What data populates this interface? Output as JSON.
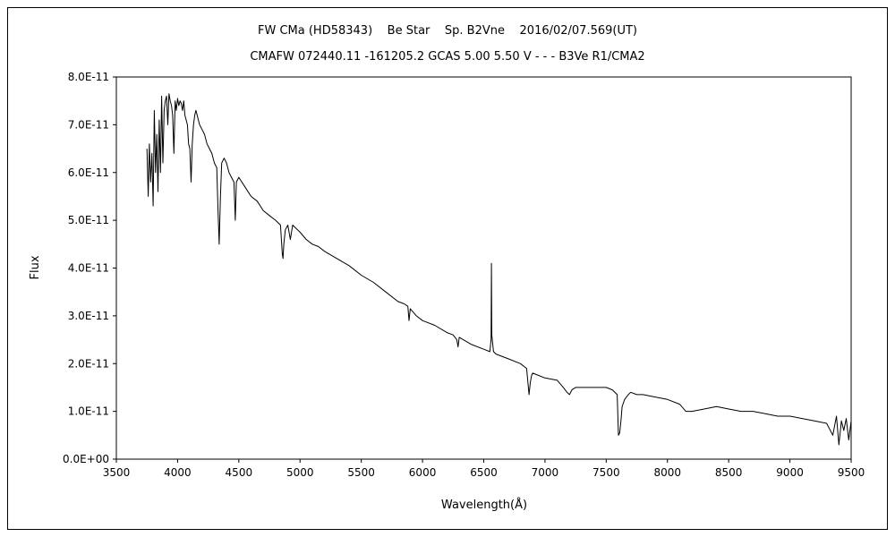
{
  "chart_data": {
    "type": "line",
    "title": "FW CMa (HD58343)    Be Star    Sp. B2Vne    2016/02/07.569(UT)",
    "subtitle": "CMAFW 072440.11 -161205.2 GCAS 5.00 5.50 V - - - B3Ve R1/CMA2",
    "xlabel": "Wavelength(Å)",
    "ylabel": "Flux",
    "xlim": [
      3500,
      9500
    ],
    "ylim": [
      0,
      8e-11
    ],
    "xticks": [
      "3500",
      "4000",
      "4500",
      "5000",
      "5500",
      "6000",
      "6500",
      "7000",
      "7500",
      "8000",
      "8500",
      "9000",
      "9500"
    ],
    "yticks": [
      "0.0E+00",
      "1.0E-11",
      "2.0E-11",
      "3.0E-11",
      "4.0E-11",
      "5.0E-11",
      "6.0E-11",
      "7.0E-11",
      "8.0E-11"
    ],
    "grid": false,
    "legend": "none",
    "line_color": "#000000",
    "series": [
      {
        "x": [
          3750,
          3760,
          3770,
          3780,
          3790,
          3800,
          3810,
          3820,
          3830,
          3840,
          3850,
          3860,
          3870,
          3880,
          3890,
          3900,
          3910,
          3920,
          3930,
          3940,
          3950,
          3960,
          3970,
          3980,
          3990,
          4000,
          4010,
          4020,
          4030,
          4040,
          4050,
          4060,
          4070,
          4080,
          4090,
          4100,
          4110,
          4120,
          4130,
          4140,
          4150,
          4160,
          4180,
          4200,
          4220,
          4240,
          4260,
          4280,
          4300,
          4320,
          4330,
          4340,
          4350,
          4360,
          4380,
          4400,
          4420,
          4440,
          4460,
          4471,
          4480,
          4500,
          4550,
          4600,
          4650,
          4700,
          4750,
          4800,
          4840,
          4855,
          4861,
          4867,
          4880,
          4900,
          4921,
          4940,
          5000,
          5050,
          5100,
          5150,
          5200,
          5300,
          5400,
          5500,
          5600,
          5700,
          5800,
          5850,
          5880,
          5890,
          5900,
          5950,
          6000,
          6100,
          6200,
          6250,
          6280,
          6290,
          6300,
          6400,
          6500,
          6550,
          6560,
          6563,
          6566,
          6580,
          6600,
          6700,
          6800,
          6850,
          6870,
          6880,
          6890,
          6900,
          6950,
          7000,
          7100,
          7150,
          7180,
          7200,
          7220,
          7250,
          7300,
          7400,
          7500,
          7550,
          7590,
          7600,
          7610,
          7620,
          7630,
          7650,
          7680,
          7700,
          7750,
          7800,
          7900,
          8000,
          8100,
          8150,
          8200,
          8300,
          8400,
          8500,
          8600,
          8700,
          8800,
          8900,
          9000,
          9100,
          9200,
          9300,
          9350,
          9380,
          9400,
          9420,
          9440,
          9460,
          9480,
          9500
        ],
        "y": [
          6.5e-11,
          5.5e-11,
          6.6e-11,
          5.8e-11,
          6.4e-11,
          5.3e-11,
          7.3e-11,
          6e-11,
          6.8e-11,
          5.6e-11,
          7.1e-11,
          6e-11,
          7.6e-11,
          6.2e-11,
          7.3e-11,
          7.5e-11,
          7.6e-11,
          7e-11,
          7.65e-11,
          7.5e-11,
          7.4e-11,
          7.2e-11,
          6.4e-11,
          7.5e-11,
          7.3e-11,
          7.55e-11,
          7.4e-11,
          7.5e-11,
          7.45e-11,
          7.3e-11,
          7.5e-11,
          7.2e-11,
          7.1e-11,
          7e-11,
          6.6e-11,
          6.5e-11,
          5.8e-11,
          6.6e-11,
          7e-11,
          7.2e-11,
          7.3e-11,
          7.2e-11,
          7e-11,
          6.9e-11,
          6.8e-11,
          6.6e-11,
          6.5e-11,
          6.4e-11,
          6.2e-11,
          6.1e-11,
          5.2e-11,
          4.5e-11,
          5.5e-11,
          6.2e-11,
          6.3e-11,
          6.2e-11,
          6e-11,
          5.9e-11,
          5.8e-11,
          5e-11,
          5.8e-11,
          5.9e-11,
          5.7e-11,
          5.5e-11,
          5.4e-11,
          5.2e-11,
          5.1e-11,
          5e-11,
          4.9e-11,
          4.3e-11,
          4.2e-11,
          4.5e-11,
          4.8e-11,
          4.9e-11,
          4.6e-11,
          4.9e-11,
          4.75e-11,
          4.6e-11,
          4.5e-11,
          4.45e-11,
          4.35e-11,
          4.2e-11,
          4.05e-11,
          3.85e-11,
          3.7e-11,
          3.5e-11,
          3.3e-11,
          3.25e-11,
          3.2e-11,
          2.9e-11,
          3.15e-11,
          3e-11,
          2.9e-11,
          2.8e-11,
          2.65e-11,
          2.6e-11,
          2.5e-11,
          2.35e-11,
          2.55e-11,
          2.4e-11,
          2.3e-11,
          2.25e-11,
          2.5e-11,
          4.1e-11,
          2.6e-11,
          2.25e-11,
          2.2e-11,
          2.1e-11,
          2e-11,
          1.9e-11,
          1.35e-11,
          1.6e-11,
          1.75e-11,
          1.8e-11,
          1.75e-11,
          1.7e-11,
          1.65e-11,
          1.5e-11,
          1.4e-11,
          1.35e-11,
          1.45e-11,
          1.5e-11,
          1.5e-11,
          1.5e-11,
          1.5e-11,
          1.45e-11,
          1.35e-11,
          5e-12,
          5.5e-12,
          8e-12,
          1.1e-11,
          1.25e-11,
          1.35e-11,
          1.4e-11,
          1.35e-11,
          1.35e-11,
          1.3e-11,
          1.25e-11,
          1.15e-11,
          1e-11,
          1e-11,
          1.05e-11,
          1.1e-11,
          1.05e-11,
          1e-11,
          1e-11,
          9.5e-12,
          9e-12,
          9e-12,
          8.5e-12,
          8e-12,
          7.5e-12,
          5e-12,
          9e-12,
          3e-12,
          8e-12,
          6e-12,
          8.5e-12,
          4e-12,
          8e-12
        ]
      }
    ]
  }
}
